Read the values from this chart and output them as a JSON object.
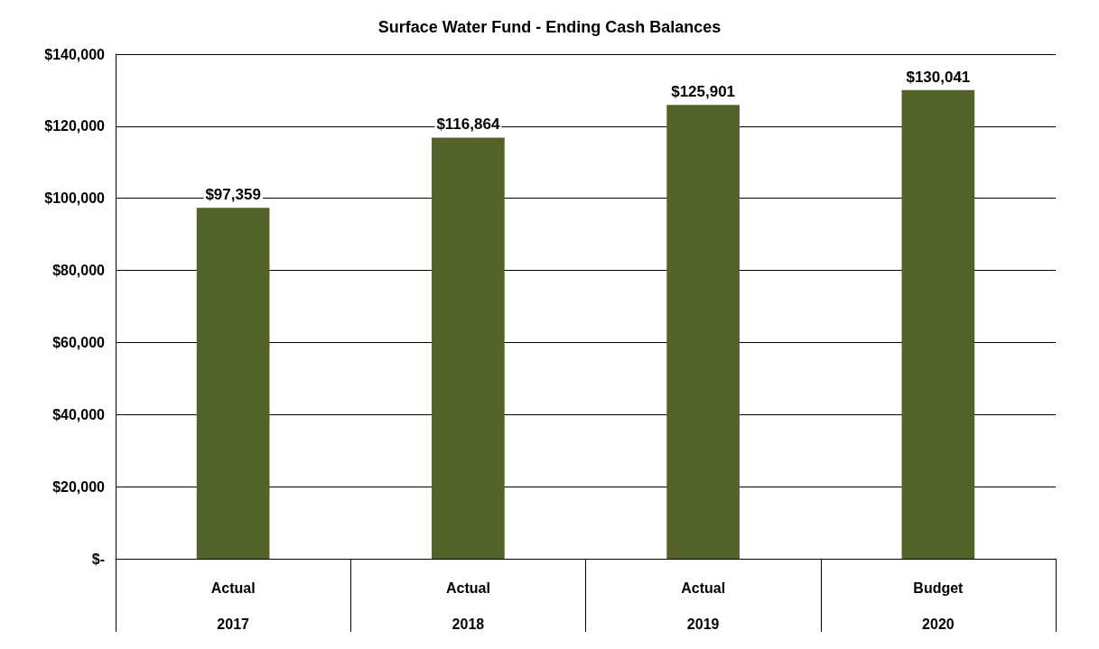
{
  "chart_data": {
    "type": "bar",
    "title": "Surface Water Fund - Ending Cash Balances",
    "categories": [
      "Actual\n2017",
      "Actual\n2018",
      "Actual\n2019",
      "Budget\n2020"
    ],
    "values": [
      97359,
      116864,
      125901,
      130041
    ],
    "value_labels": [
      "$97,359",
      "$116,864",
      "$125,901",
      "$130,041"
    ],
    "color": "#536228",
    "ylim": [
      0,
      140000
    ],
    "yticks": [
      {
        "value": 0,
        "label": "$-"
      },
      {
        "value": 20000,
        "label": "$20,000"
      },
      {
        "value": 40000,
        "label": "$40,000"
      },
      {
        "value": 60000,
        "label": "$60,000"
      },
      {
        "value": 80000,
        "label": "$80,000"
      },
      {
        "value": 100000,
        "label": "$100,000"
      },
      {
        "value": 120000,
        "label": "$120,000"
      },
      {
        "value": 140000,
        "label": "$140,000"
      }
    ],
    "grid": "y"
  }
}
